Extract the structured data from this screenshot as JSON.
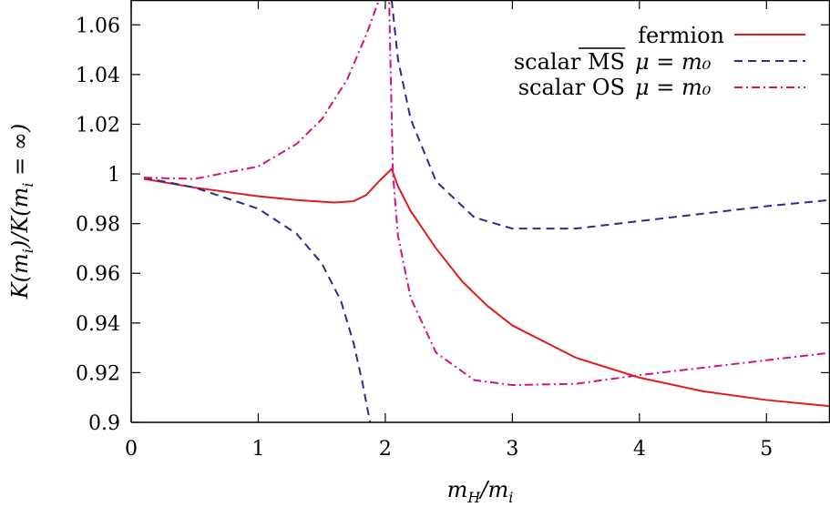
{
  "chart_data": {
    "type": "line",
    "xlabel": "m_H/m_i",
    "ylabel": "K(m_i)/K(m_i = ∞)",
    "xlim": [
      0,
      5.5
    ],
    "ylim": [
      0.9,
      1.07
    ],
    "xticks": [
      0,
      1,
      2,
      3,
      4,
      5
    ],
    "yticks": [
      0.9,
      0.92,
      0.94,
      0.96,
      0.98,
      1,
      1.02,
      1.04,
      1.06
    ],
    "xtick_labels": [
      "0",
      "1",
      "2",
      "3",
      "4",
      "5"
    ],
    "ytick_labels": [
      "0.9",
      "0.92",
      "0.94",
      "0.96",
      "0.98",
      "1",
      "1.02",
      "1.04",
      "1.06"
    ],
    "grid": false,
    "legend_position": "top-right",
    "series": [
      {
        "name": "fermion",
        "color": "#e41a1c",
        "dash": "solid",
        "points": [
          [
            0.1,
            0.998
          ],
          [
            0.5,
            0.9945
          ],
          [
            1.0,
            0.991
          ],
          [
            1.3,
            0.9895
          ],
          [
            1.6,
            0.9885
          ],
          [
            1.75,
            0.989
          ],
          [
            1.85,
            0.9915
          ],
          [
            1.95,
            0.997
          ],
          [
            2.05,
            1.002
          ],
          [
            2.1,
            0.995
          ],
          [
            2.2,
            0.985
          ],
          [
            2.4,
            0.97
          ],
          [
            2.6,
            0.957
          ],
          [
            2.8,
            0.947
          ],
          [
            3.0,
            0.939
          ],
          [
            3.5,
            0.926
          ],
          [
            4.0,
            0.918
          ],
          [
            4.5,
            0.9125
          ],
          [
            5.0,
            0.909
          ],
          [
            5.5,
            0.9065
          ]
        ]
      },
      {
        "name": "scalar MS-bar μ = m0",
        "color": "#2b2b8c",
        "dash": "dashed",
        "points": [
          [
            0.1,
            0.9985
          ],
          [
            0.5,
            0.9945
          ],
          [
            1.0,
            0.986
          ],
          [
            1.3,
            0.976
          ],
          [
            1.5,
            0.964
          ],
          [
            1.65,
            0.949
          ],
          [
            1.75,
            0.932
          ],
          [
            1.82,
            0.916
          ],
          [
            1.88,
            0.9
          ],
          [
            2.05,
            1.07
          ],
          [
            2.1,
            1.046
          ],
          [
            2.2,
            1.022
          ],
          [
            2.4,
            0.997
          ],
          [
            2.7,
            0.9825
          ],
          [
            3.0,
            0.978
          ],
          [
            3.5,
            0.978
          ],
          [
            4.0,
            0.981
          ],
          [
            4.5,
            0.984
          ],
          [
            5.0,
            0.987
          ],
          [
            5.5,
            0.9895
          ]
        ]
      },
      {
        "name": "scalar OS μ = m0",
        "color": "#d6117e",
        "dash": "dashdot",
        "points": [
          [
            0.1,
            0.9985
          ],
          [
            0.5,
            0.998
          ],
          [
            1.0,
            1.003
          ],
          [
            1.3,
            1.012
          ],
          [
            1.5,
            1.022
          ],
          [
            1.7,
            1.038
          ],
          [
            1.85,
            1.056
          ],
          [
            1.95,
            1.07
          ],
          [
            2.03,
            1.07
          ],
          [
            2.06,
            1.0
          ],
          [
            2.1,
            0.975
          ],
          [
            2.2,
            0.95
          ],
          [
            2.4,
            0.928
          ],
          [
            2.7,
            0.917
          ],
          [
            3.0,
            0.915
          ],
          [
            3.5,
            0.9155
          ],
          [
            4.0,
            0.919
          ],
          [
            4.5,
            0.922
          ],
          [
            5.0,
            0.925
          ],
          [
            5.5,
            0.928
          ]
        ]
      }
    ]
  },
  "legend": [
    {
      "label": "fermion",
      "mu": ""
    },
    {
      "label": "scalar MS",
      "mu": "μ = m₀"
    },
    {
      "label": "scalar OS",
      "mu": "μ = m₀"
    }
  ]
}
